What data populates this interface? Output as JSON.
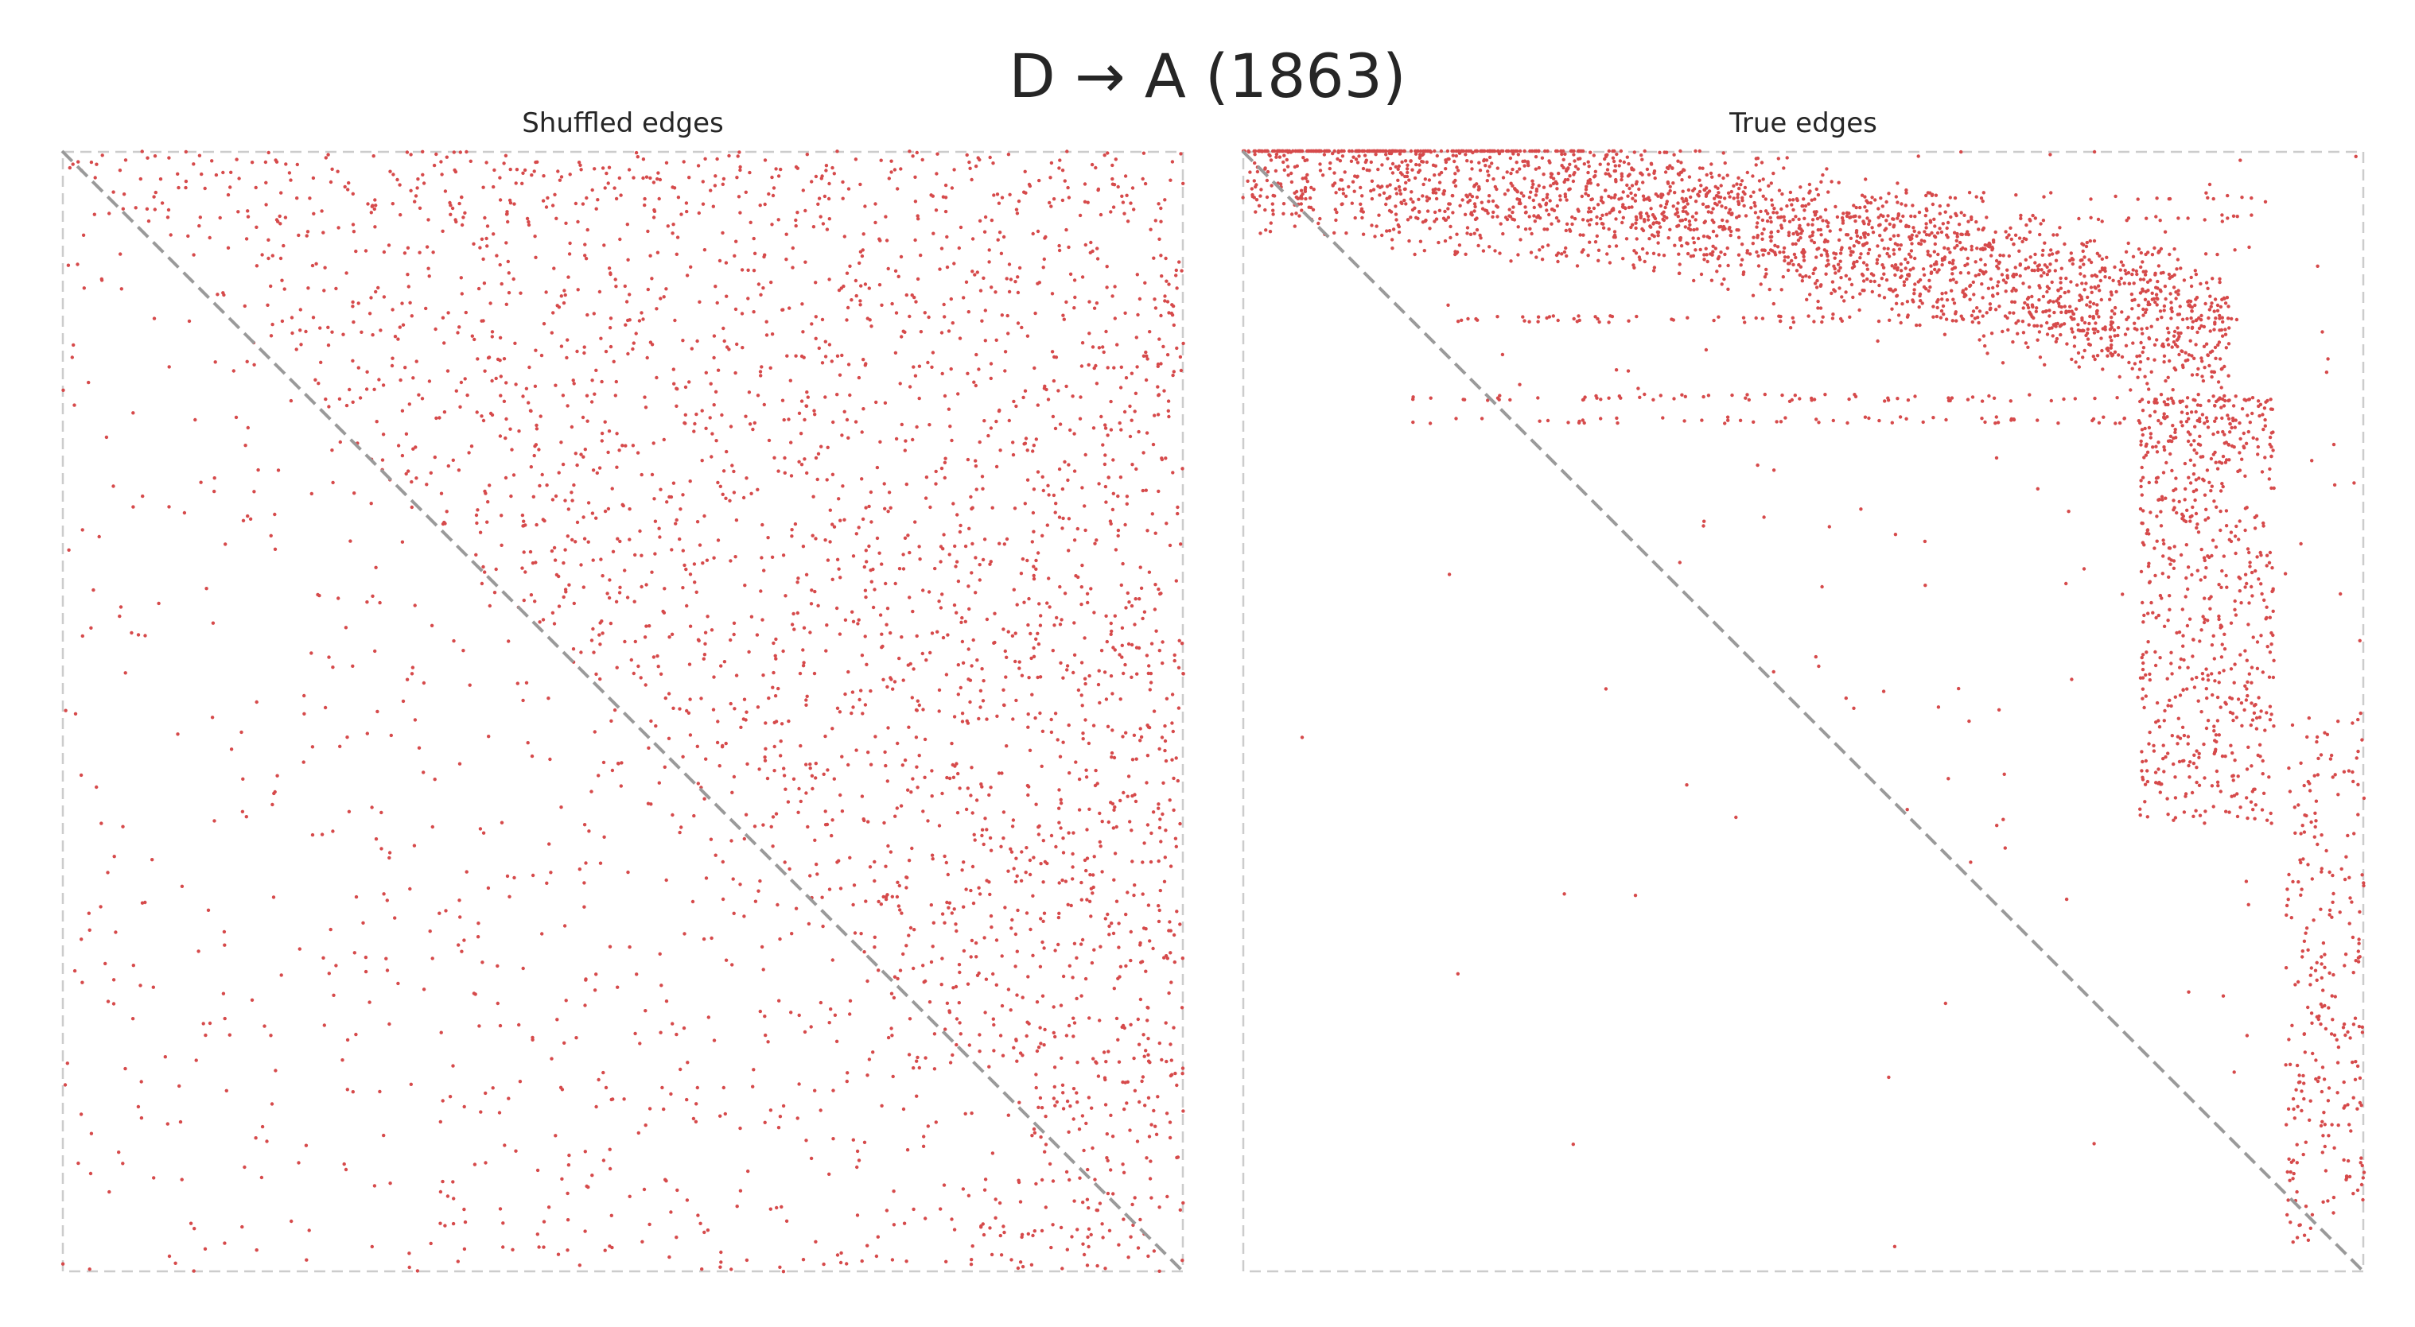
{
  "figure": {
    "title": "D → A (1863)"
  },
  "chart_data": [
    {
      "type": "scatter",
      "title": "Shuffled edges",
      "xlabel": "",
      "ylabel": "",
      "xlim": [
        0,
        1863
      ],
      "ylim": [
        0,
        1863
      ],
      "y_inverted": true,
      "axes_visible": false,
      "frame_style": "dashed",
      "grid": false,
      "reference_line": "diagonal",
      "marker_color": "#d64a4b",
      "line_color": "#9a9a9a",
      "frame_color": "#cccccc",
      "points_note": "approximate"
    },
    {
      "type": "scatter",
      "title": "True edges",
      "xlabel": "",
      "ylabel": "",
      "xlim": [
        0,
        1863
      ],
      "ylim": [
        0,
        1863
      ],
      "y_inverted": true,
      "axes_visible": false,
      "frame_style": "dashed",
      "grid": false,
      "reference_line": "diagonal",
      "marker_color": "#d64a4b",
      "line_color": "#9a9a9a",
      "frame_color": "#cccccc",
      "points_note": "approximate"
    }
  ]
}
